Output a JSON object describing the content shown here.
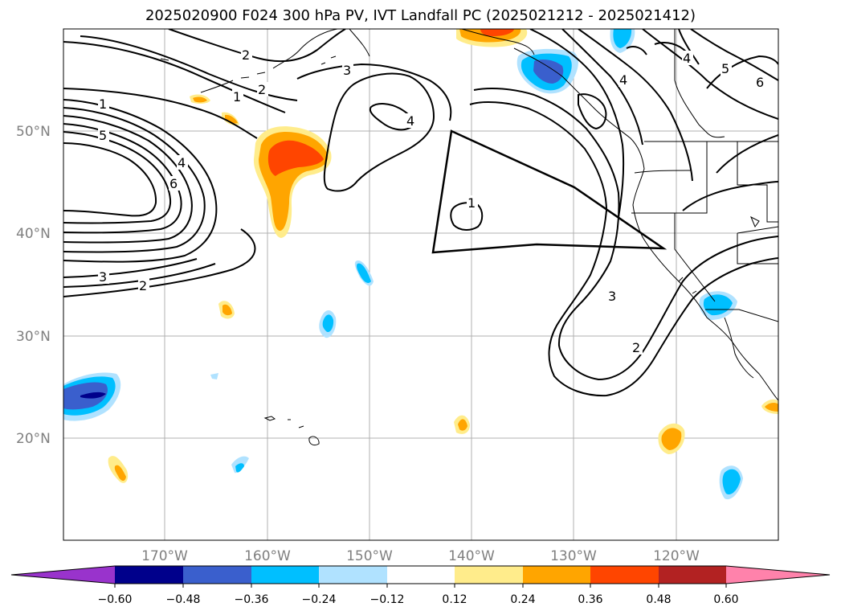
{
  "title": "2025020900 F024 300 hPa PV, IVT Landfall PC (2025021212 - 2025021412)",
  "map": {
    "projection": "PlateCarree",
    "lon_range": [
      -180,
      -110
    ],
    "lat_range": [
      10,
      60
    ],
    "gridlines": true,
    "lat_labels": [
      "50°N",
      "40°N",
      "30°N",
      "20°N"
    ],
    "lon_labels": [
      "170°W",
      "160°W",
      "150°W",
      "140°W",
      "130°W",
      "120°W"
    ],
    "contour_labels": [
      "1",
      "2",
      "3",
      "4",
      "5",
      "6",
      "2",
      "1",
      "3",
      "4",
      "2",
      "1",
      "3",
      "2",
      "4",
      "5",
      "6",
      "4"
    ]
  },
  "colorbar": {
    "orientation": "horizontal",
    "extend": "both",
    "ticks": [
      "−0.60",
      "−0.48",
      "−0.36",
      "−0.24",
      "−0.12",
      "0.12",
      "0.24",
      "0.36",
      "0.48",
      "0.60"
    ],
    "colors": {
      "under": "#9933cc",
      "c1": "#00008b",
      "c2": "#3a5fcd",
      "c3": "#00bfff",
      "c4": "#b0e2ff",
      "c5": "#ffffff",
      "c6": "#ffec8b",
      "c7": "#ffa500",
      "c8": "#ff4500",
      "c9": "#b22222",
      "over": "#ff82ab"
    }
  }
}
